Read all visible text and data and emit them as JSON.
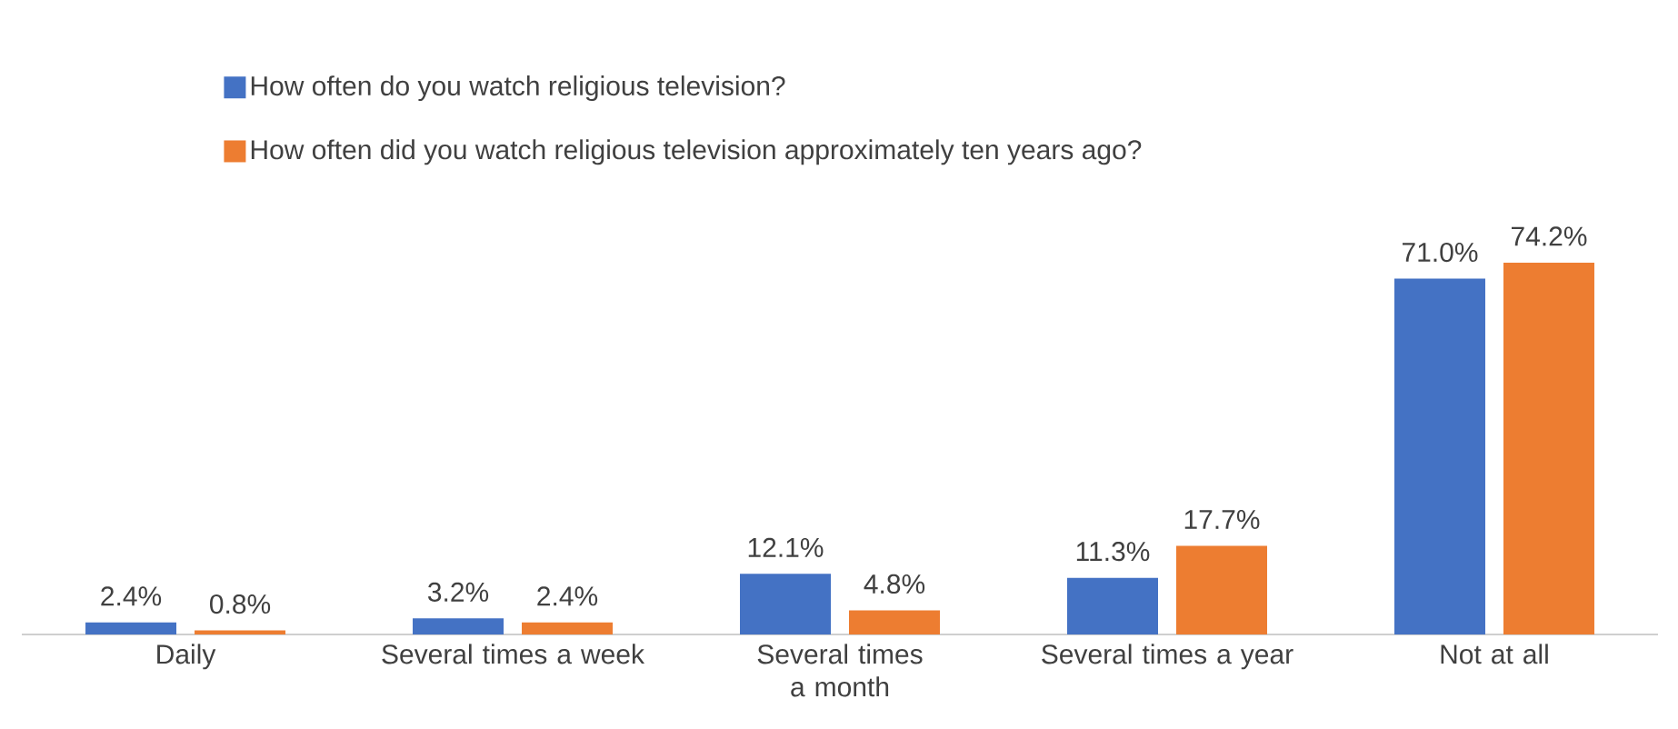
{
  "chart_data": {
    "type": "bar",
    "categories": [
      "Daily",
      "Several times a week",
      "Several times a month",
      "Several times a year",
      "Not at all"
    ],
    "series": [
      {
        "name": "How often do you watch religious television?",
        "color": "#4472c4",
        "values": [
          2.4,
          3.2,
          12.1,
          11.3,
          71.0
        ],
        "value_labels": [
          "2.4%",
          "3.2%",
          "12.1%",
          "11.3%",
          "71.0%"
        ]
      },
      {
        "name": "How often did you watch religious television approximately ten years ago?",
        "color": "#ed7d31",
        "values": [
          0.8,
          2.4,
          4.8,
          17.7,
          74.2
        ],
        "value_labels": [
          "0.8%",
          "2.4%",
          "4.8%",
          "17.7%",
          "74.2%"
        ]
      }
    ],
    "legend": "top left"
  }
}
